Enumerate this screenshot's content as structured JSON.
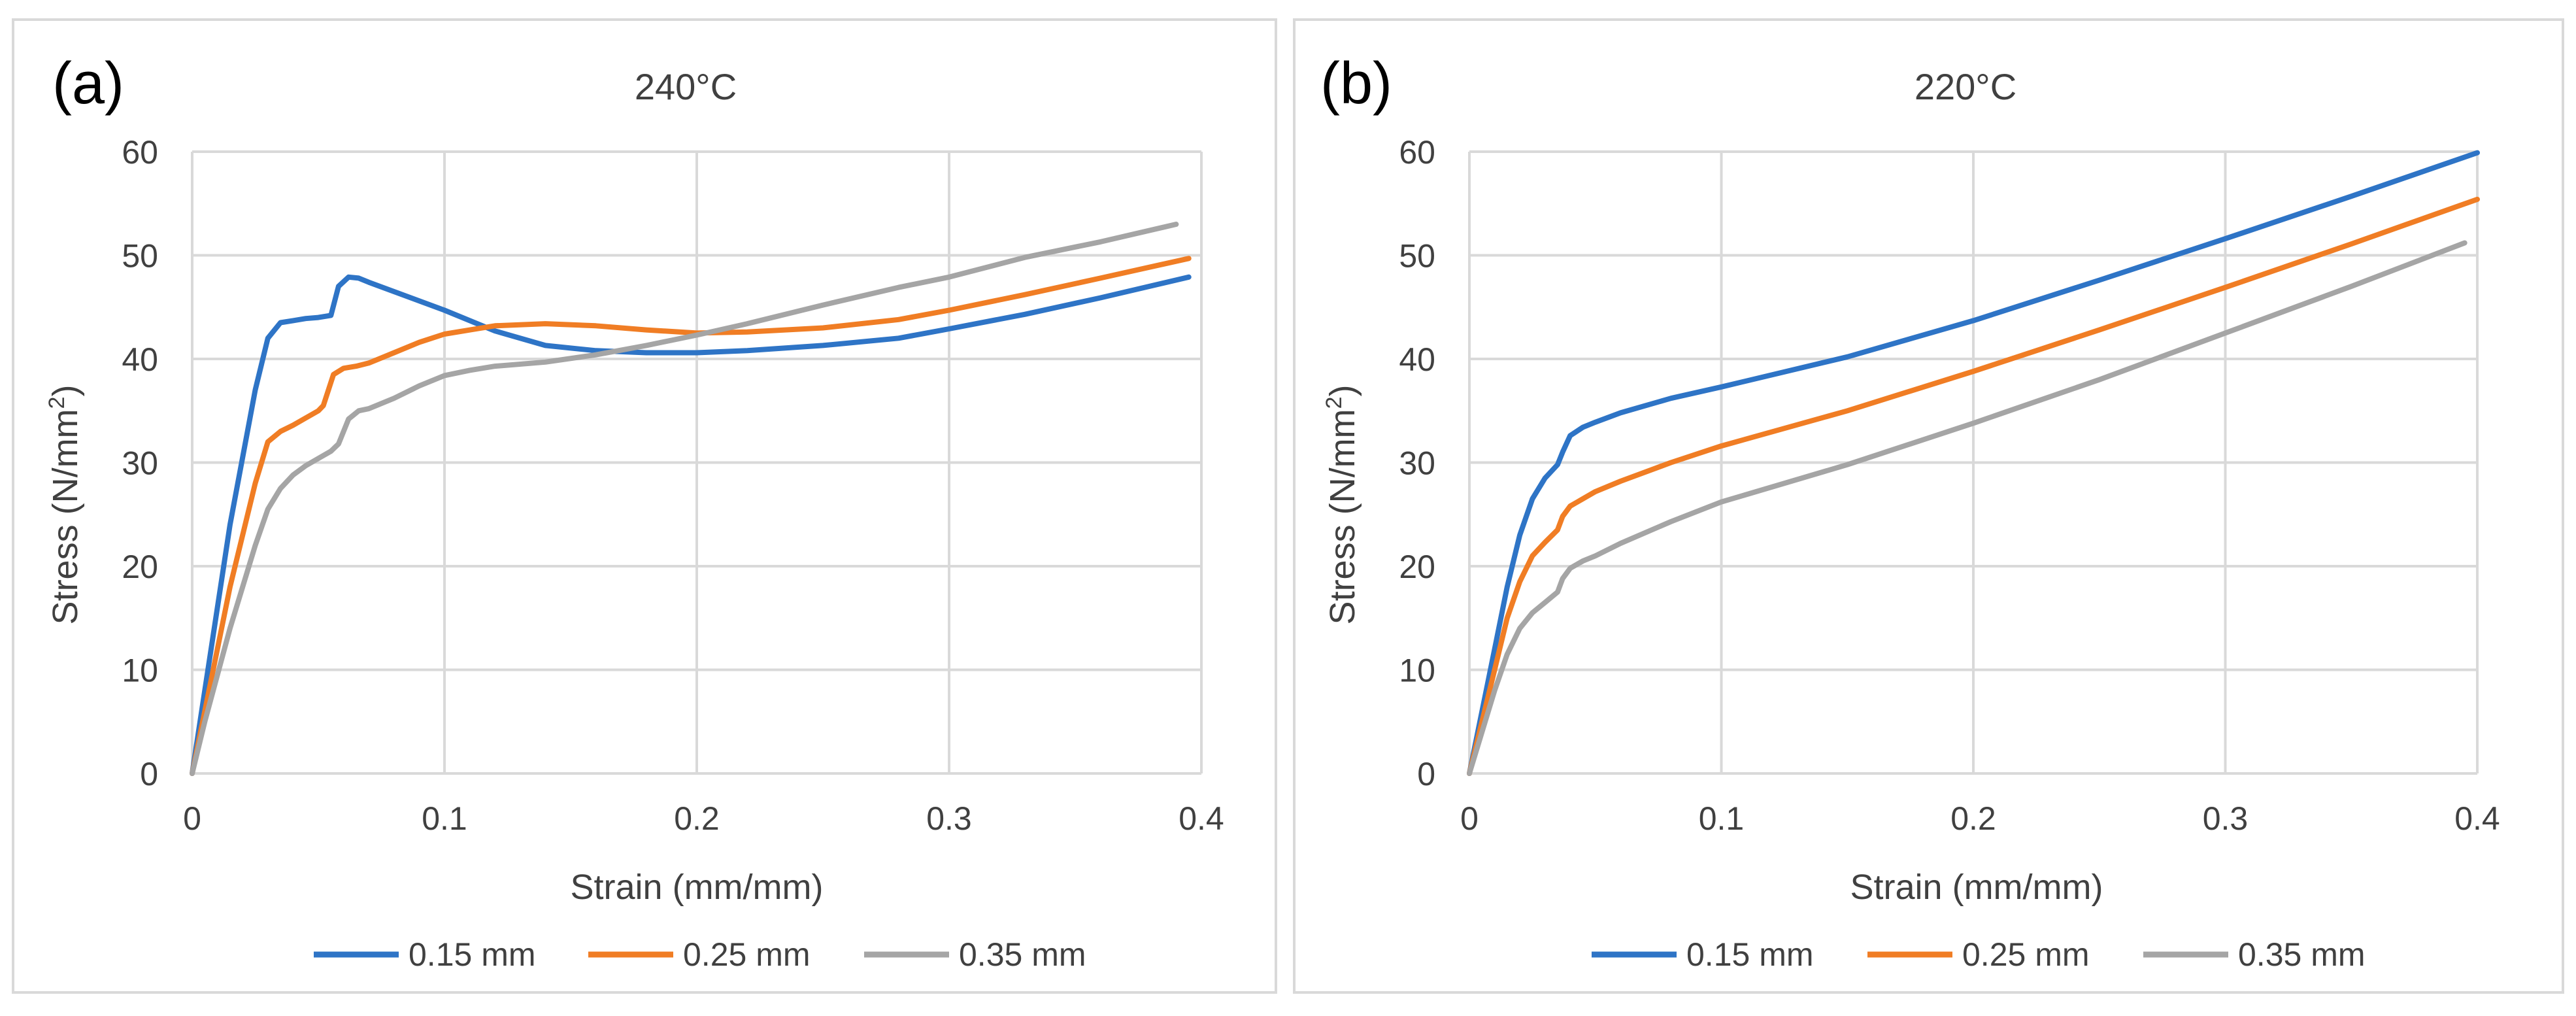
{
  "chart_data": [
    {
      "type": "line",
      "panel_label": "(a)",
      "title": "240°C",
      "xlabel": "Strain (mm/mm)",
      "ylabel": "Stress (N/mm",
      "ylabel_sup": "2",
      "ylabel_end": ")",
      "xlim": [
        0,
        0.4
      ],
      "ylim": [
        0,
        60
      ],
      "xticks": [
        "0",
        "0.1",
        "0.2",
        "0.3",
        "0.4"
      ],
      "yticks": [
        "0",
        "10",
        "20",
        "30",
        "40",
        "50",
        "60"
      ],
      "grid": true,
      "legend_position": "bottom",
      "series": [
        {
          "name": "0.15 mm",
          "color": "#2E74C6",
          "x": [
            0,
            0.005,
            0.015,
            0.025,
            0.03,
            0.035,
            0.04,
            0.045,
            0.05,
            0.055,
            0.058,
            0.062,
            0.066,
            0.07,
            0.08,
            0.09,
            0.1,
            0.12,
            0.14,
            0.16,
            0.18,
            0.2,
            0.22,
            0.25,
            0.28,
            0.3,
            0.33,
            0.36,
            0.395
          ],
          "y": [
            0,
            8,
            24,
            37,
            42,
            43.5,
            43.7,
            43.9,
            44.0,
            44.2,
            47.0,
            47.9,
            47.8,
            47.4,
            46.5,
            45.6,
            44.7,
            42.7,
            41.3,
            40.8,
            40.6,
            40.6,
            40.8,
            41.3,
            42.0,
            42.9,
            44.3,
            45.9,
            47.9
          ]
        },
        {
          "name": "0.25 mm",
          "color": "#F07D24",
          "x": [
            0,
            0.005,
            0.015,
            0.025,
            0.03,
            0.035,
            0.04,
            0.045,
            0.05,
            0.052,
            0.056,
            0.06,
            0.065,
            0.07,
            0.08,
            0.09,
            0.1,
            0.12,
            0.14,
            0.16,
            0.18,
            0.2,
            0.22,
            0.25,
            0.28,
            0.3,
            0.33,
            0.36,
            0.395
          ],
          "y": [
            0,
            6,
            18,
            28,
            32,
            33,
            33.6,
            34.3,
            35.0,
            35.5,
            38.5,
            39.1,
            39.3,
            39.6,
            40.6,
            41.6,
            42.4,
            43.2,
            43.4,
            43.2,
            42.8,
            42.5,
            42.6,
            43.0,
            43.8,
            44.7,
            46.2,
            47.8,
            49.7
          ]
        },
        {
          "name": "0.35 mm",
          "color": "#A5A5A5",
          "x": [
            0,
            0.005,
            0.015,
            0.025,
            0.03,
            0.035,
            0.04,
            0.045,
            0.05,
            0.055,
            0.058,
            0.062,
            0.066,
            0.07,
            0.08,
            0.09,
            0.1,
            0.11,
            0.12,
            0.14,
            0.16,
            0.18,
            0.2,
            0.22,
            0.25,
            0.28,
            0.3,
            0.33,
            0.36,
            0.39
          ],
          "y": [
            0,
            5,
            14,
            22,
            25.5,
            27.5,
            28.8,
            29.7,
            30.4,
            31.1,
            31.8,
            34.2,
            35.0,
            35.2,
            36.2,
            37.4,
            38.4,
            38.9,
            39.3,
            39.7,
            40.4,
            41.3,
            42.3,
            43.4,
            45.2,
            46.9,
            47.9,
            49.8,
            51.3,
            53.0
          ]
        }
      ]
    },
    {
      "type": "line",
      "panel_label": "(b)",
      "title": "220°C",
      "xlabel": "Strain (mm/mm)",
      "ylabel": "Stress (N/mm",
      "ylabel_sup": "2",
      "ylabel_end": ")",
      "xlim": [
        0,
        0.4
      ],
      "ylim": [
        0,
        60
      ],
      "xticks": [
        "0",
        "0.1",
        "0.2",
        "0.3",
        "0.4"
      ],
      "yticks": [
        "0",
        "10",
        "20",
        "30",
        "40",
        "50",
        "60"
      ],
      "grid": true,
      "legend_position": "bottom",
      "series": [
        {
          "name": "0.15 mm",
          "color": "#2E74C6",
          "x": [
            0,
            0.005,
            0.01,
            0.015,
            0.02,
            0.025,
            0.03,
            0.035,
            0.037,
            0.04,
            0.045,
            0.05,
            0.06,
            0.08,
            0.1,
            0.15,
            0.2,
            0.25,
            0.3,
            0.35,
            0.4
          ],
          "y": [
            0,
            6,
            12,
            18,
            23,
            26.5,
            28.5,
            29.8,
            31.0,
            32.6,
            33.4,
            33.9,
            34.8,
            36.2,
            37.3,
            40.2,
            43.7,
            47.6,
            51.6,
            55.7,
            59.9
          ]
        },
        {
          "name": "0.25 mm",
          "color": "#F07D24",
          "x": [
            0,
            0.005,
            0.01,
            0.015,
            0.02,
            0.025,
            0.03,
            0.035,
            0.037,
            0.04,
            0.045,
            0.05,
            0.06,
            0.08,
            0.1,
            0.15,
            0.2,
            0.25,
            0.3,
            0.35,
            0.4
          ],
          "y": [
            0,
            5,
            10,
            15,
            18.5,
            21,
            22.3,
            23.5,
            24.8,
            25.8,
            26.5,
            27.2,
            28.2,
            30.0,
            31.6,
            35.0,
            38.8,
            42.8,
            46.9,
            51.1,
            55.4
          ]
        },
        {
          "name": "0.35 mm",
          "color": "#A5A5A5",
          "x": [
            0,
            0.005,
            0.01,
            0.015,
            0.02,
            0.025,
            0.03,
            0.035,
            0.037,
            0.04,
            0.045,
            0.05,
            0.06,
            0.08,
            0.1,
            0.15,
            0.2,
            0.25,
            0.3,
            0.35,
            0.395
          ],
          "y": [
            0,
            4,
            8,
            11.5,
            14,
            15.5,
            16.5,
            17.5,
            18.8,
            19.8,
            20.5,
            21.0,
            22.2,
            24.3,
            26.2,
            29.8,
            33.8,
            38.0,
            42.5,
            47.0,
            51.2
          ]
        }
      ]
    }
  ]
}
